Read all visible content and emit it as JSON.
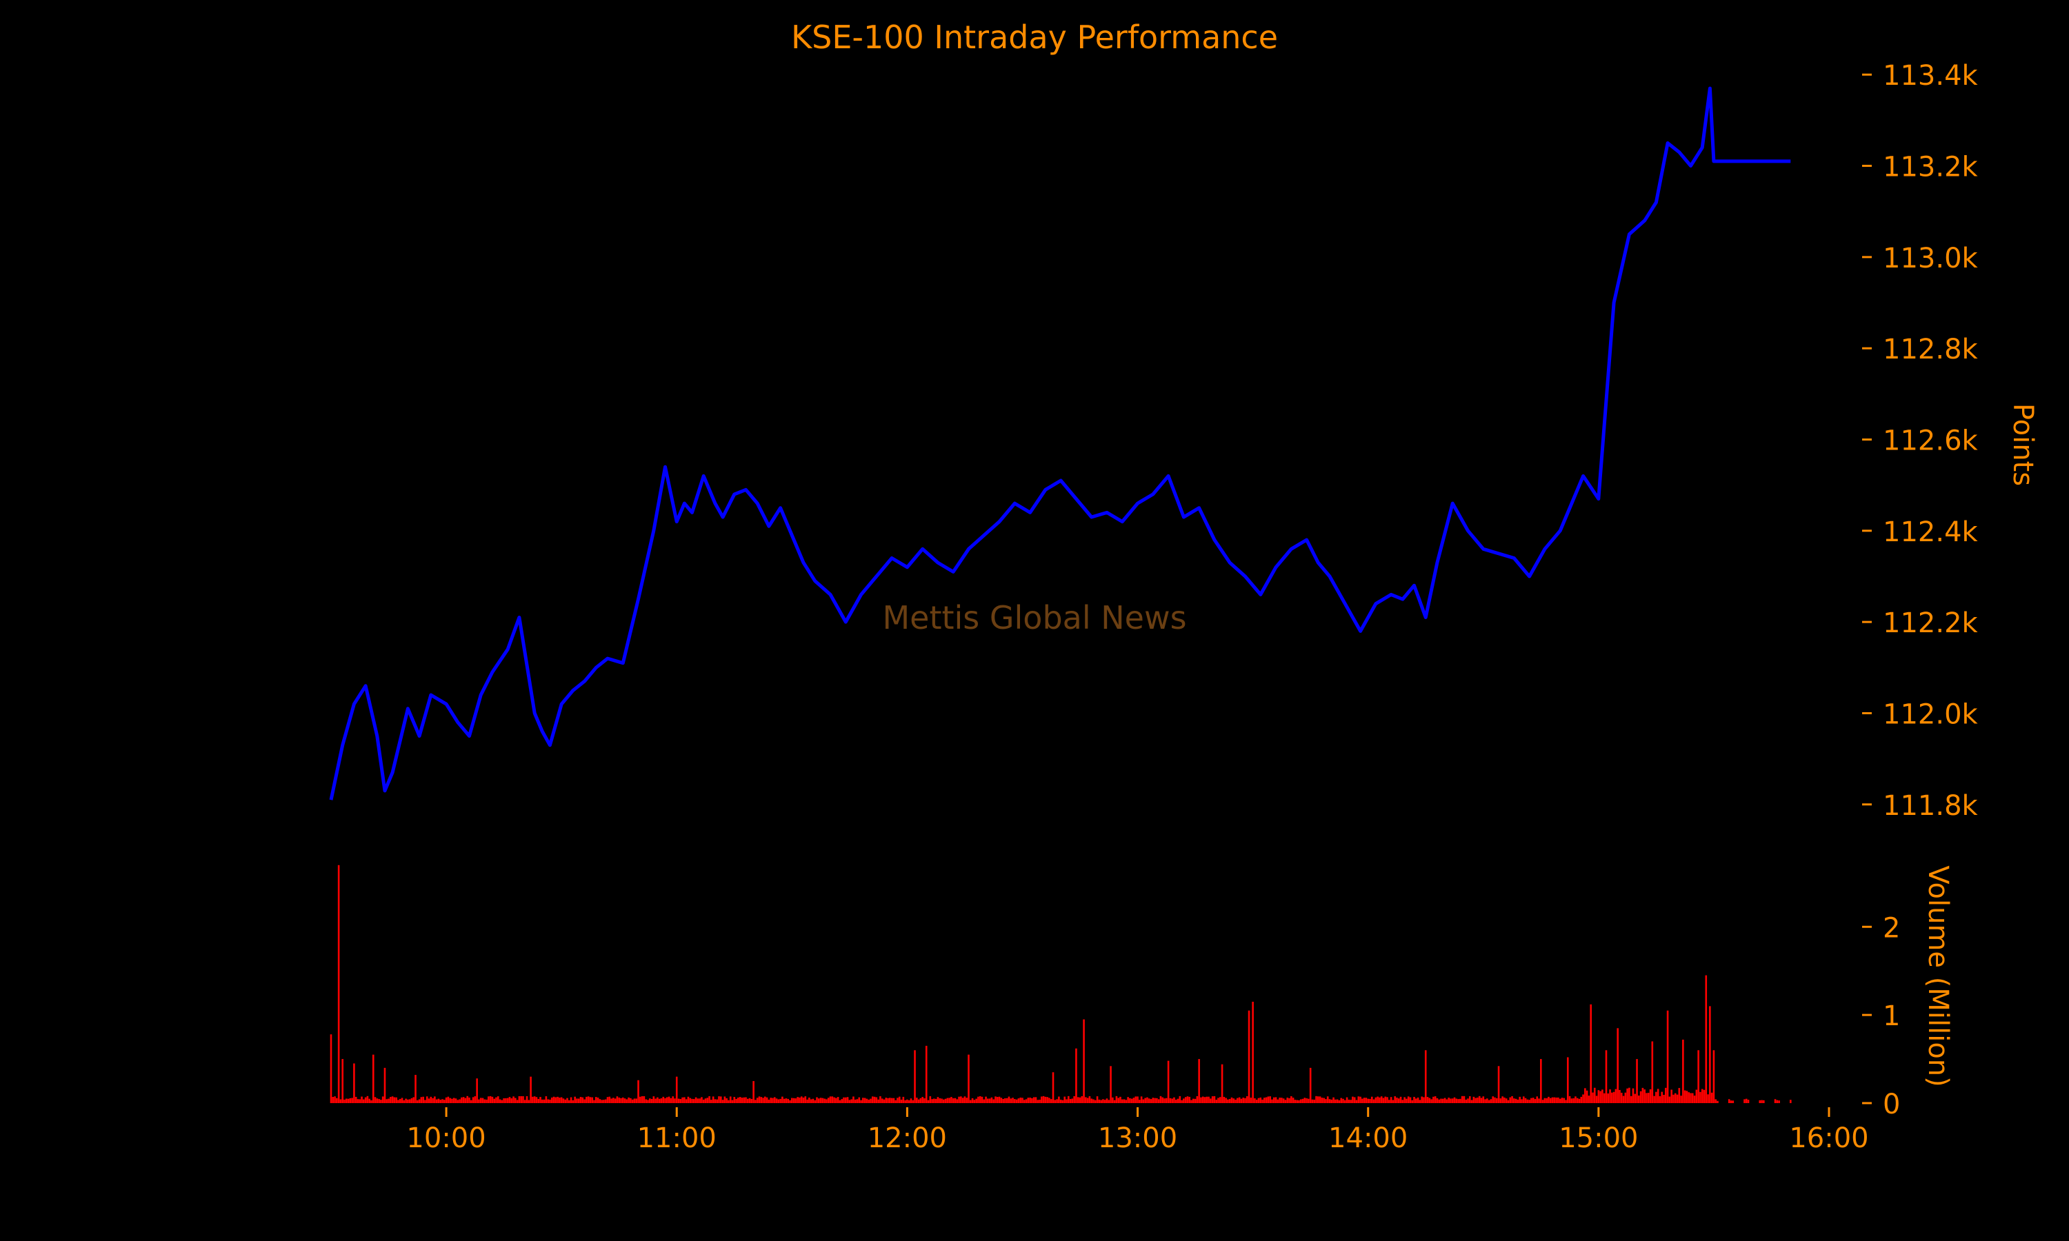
{
  "chart_data": {
    "type": "line",
    "title": "KSE-100 Intraday Performance",
    "watermark": "Mettis Global News",
    "colors": {
      "background": "#000000",
      "text": "#ff8c00",
      "price_line": "#0000ff",
      "volume_bars": "#ff0000",
      "watermark": "#6b3f12"
    },
    "x_axis": {
      "ticks": [
        "10:00",
        "11:00",
        "12:00",
        "13:00",
        "14:00",
        "15:00",
        "16:00"
      ],
      "range": [
        "09:30",
        "16:00"
      ],
      "shared": true
    },
    "price_panel": {
      "ylabel": "Points",
      "ylim": [
        111780,
        113420
      ],
      "yticks": [
        111800,
        112000,
        112200,
        112400,
        112600,
        112800,
        113000,
        113200,
        113400
      ],
      "ytick_labels": [
        "111.8k",
        "112.0k",
        "112.2k",
        "112.4k",
        "112.6k",
        "112.8k",
        "113.0k",
        "113.2k",
        "113.4k"
      ],
      "axis_side": "right",
      "series": [
        {
          "x": [
            "09:30",
            "09:33",
            "09:36",
            "09:39",
            "09:42",
            "09:44",
            "09:46",
            "09:50",
            "09:53",
            "09:56",
            "10:00",
            "10:03",
            "10:06",
            "10:09",
            "10:12",
            "10:16",
            "10:19",
            "10:23",
            "10:25",
            "10:27",
            "10:30",
            "10:33",
            "10:36",
            "10:39",
            "10:42",
            "10:46",
            "10:50",
            "10:54",
            "10:57",
            "11:00",
            "11:02",
            "11:04",
            "11:07",
            "11:10",
            "11:12",
            "11:15",
            "11:18",
            "11:21",
            "11:24",
            "11:27",
            "11:30",
            "11:33",
            "11:36",
            "11:40",
            "11:44",
            "11:48",
            "11:52",
            "11:56",
            "12:00",
            "12:04",
            "12:08",
            "12:12",
            "12:16",
            "12:20",
            "12:24",
            "12:28",
            "12:32",
            "12:36",
            "12:40",
            "12:44",
            "12:48",
            "12:52",
            "12:56",
            "13:00",
            "13:04",
            "13:08",
            "13:12",
            "13:16",
            "13:20",
            "13:24",
            "13:28",
            "13:32",
            "13:36",
            "13:40",
            "13:44",
            "13:47",
            "13:50",
            "13:54",
            "13:58",
            "14:02",
            "14:06",
            "14:09",
            "14:12",
            "14:15",
            "14:18",
            "14:22",
            "14:26",
            "14:30",
            "14:34",
            "14:38",
            "14:42",
            "14:46",
            "14:50",
            "14:53",
            "14:56",
            "15:00",
            "15:04",
            "15:08",
            "15:12",
            "15:15",
            "15:18",
            "15:21",
            "15:24",
            "15:27",
            "15:29",
            "15:30",
            "15:40",
            "15:50"
          ],
          "y": [
            111810,
            111930,
            112020,
            112060,
            111950,
            111830,
            111870,
            112010,
            111950,
            112040,
            112020,
            111980,
            111950,
            112040,
            112090,
            112140,
            112210,
            112000,
            111960,
            111930,
            112020,
            112050,
            112070,
            112100,
            112120,
            112110,
            112250,
            112400,
            112540,
            112420,
            112460,
            112440,
            112520,
            112460,
            112430,
            112480,
            112490,
            112460,
            112410,
            112450,
            112390,
            112330,
            112290,
            112260,
            112200,
            112260,
            112300,
            112340,
            112320,
            112360,
            112330,
            112310,
            112360,
            112390,
            112420,
            112460,
            112440,
            112490,
            112510,
            112470,
            112430,
            112440,
            112420,
            112460,
            112480,
            112520,
            112430,
            112450,
            112380,
            112330,
            112300,
            112260,
            112320,
            112360,
            112380,
            112330,
            112300,
            112240,
            112180,
            112240,
            112260,
            112250,
            112280,
            112210,
            112330,
            112460,
            112400,
            112360,
            112350,
            112340,
            112300,
            112360,
            112400,
            112460,
            112520,
            112470,
            112900,
            113050,
            113080,
            113120,
            113250,
            113230,
            113200,
            113240,
            113370,
            113210,
            113210,
            113210
          ],
          "name": ""
        }
      ]
    },
    "volume_panel": {
      "ylabel": "Volume (Million)",
      "ylim": [
        0,
        2.8
      ],
      "yticks": [
        0,
        1,
        2
      ],
      "ytick_labels": [
        "0",
        "1",
        "2"
      ],
      "axis_side": "right",
      "spikes": [
        {
          "t": "09:30",
          "v": 0.78
        },
        {
          "t": "09:32",
          "v": 2.7
        },
        {
          "t": "09:33",
          "v": 0.5
        },
        {
          "t": "09:36",
          "v": 0.45
        },
        {
          "t": "09:41",
          "v": 0.55
        },
        {
          "t": "09:44",
          "v": 0.4
        },
        {
          "t": "09:52",
          "v": 0.32
        },
        {
          "t": "10:08",
          "v": 0.28
        },
        {
          "t": "10:22",
          "v": 0.3
        },
        {
          "t": "10:50",
          "v": 0.26
        },
        {
          "t": "11:00",
          "v": 0.3
        },
        {
          "t": "11:20",
          "v": 0.25
        },
        {
          "t": "12:02",
          "v": 0.6
        },
        {
          "t": "12:05",
          "v": 0.65
        },
        {
          "t": "12:16",
          "v": 0.55
        },
        {
          "t": "12:38",
          "v": 0.35
        },
        {
          "t": "12:44",
          "v": 0.62
        },
        {
          "t": "12:46",
          "v": 0.95
        },
        {
          "t": "12:53",
          "v": 0.42
        },
        {
          "t": "13:08",
          "v": 0.48
        },
        {
          "t": "13:16",
          "v": 0.5
        },
        {
          "t": "13:22",
          "v": 0.44
        },
        {
          "t": "13:29",
          "v": 1.05
        },
        {
          "t": "13:30",
          "v": 1.15
        },
        {
          "t": "13:45",
          "v": 0.4
        },
        {
          "t": "14:15",
          "v": 0.6
        },
        {
          "t": "14:34",
          "v": 0.42
        },
        {
          "t": "14:45",
          "v": 0.5
        },
        {
          "t": "14:52",
          "v": 0.52
        },
        {
          "t": "14:58",
          "v": 1.12
        },
        {
          "t": "15:02",
          "v": 0.6
        },
        {
          "t": "15:05",
          "v": 0.85
        },
        {
          "t": "15:10",
          "v": 0.5
        },
        {
          "t": "15:14",
          "v": 0.7
        },
        {
          "t": "15:18",
          "v": 1.05
        },
        {
          "t": "15:22",
          "v": 0.72
        },
        {
          "t": "15:26",
          "v": 0.6
        },
        {
          "t": "15:28",
          "v": 1.45
        },
        {
          "t": "15:29",
          "v": 1.1
        },
        {
          "t": "15:30",
          "v": 0.6
        }
      ],
      "typical_volume_before_15_30": 0.08,
      "typical_volume_after_15_30": 0.05
    },
    "legend": "none",
    "grid": false
  }
}
